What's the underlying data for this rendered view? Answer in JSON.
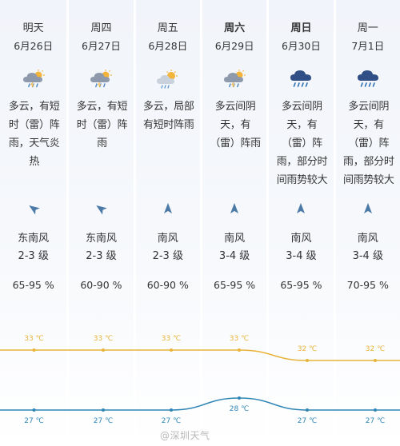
{
  "days": [
    {
      "day": "明天",
      "bold": false,
      "date": "6月26日",
      "icon": "cloud-thunder-sun-icon",
      "desc": [
        "多云，有短",
        "时（雷）阵",
        "雨，天气炎",
        "热"
      ],
      "wind_dir": "东南风",
      "wind_level": "2-3 级",
      "humidity": "65-95 %",
      "high": "33 ℃",
      "low": "27 ℃"
    },
    {
      "day": "周四",
      "bold": false,
      "date": "6月27日",
      "icon": "cloud-thunder-sun-icon",
      "desc": [
        "多云，有短",
        "时（雷）阵",
        "雨"
      ],
      "wind_dir": "东南风",
      "wind_level": "2-3 级",
      "humidity": "60-90 %",
      "high": "33 ℃",
      "low": "27 ℃"
    },
    {
      "day": "周五",
      "bold": false,
      "date": "6月28日",
      "icon": "cloud-sun-rain-icon",
      "desc": [
        "多云，局部",
        "有短时阵雨"
      ],
      "wind_dir": "南风",
      "wind_level": "2-3 级",
      "humidity": "60-90 %",
      "high": "33 ℃",
      "low": "27 ℃"
    },
    {
      "day": "周六",
      "bold": true,
      "date": "6月29日",
      "icon": "cloud-thunder-sun-icon",
      "desc": [
        "多云间阴",
        "天，有",
        "（雷）阵雨"
      ],
      "wind_dir": "南风",
      "wind_level": "3-4 级",
      "humidity": "65-95 %",
      "high": "33 ℃",
      "low": "28 ℃"
    },
    {
      "day": "周日",
      "bold": true,
      "date": "6月30日",
      "icon": "dark-cloud-rain-icon",
      "desc": [
        "多云间阴",
        "天，有",
        "（雷）阵",
        "雨，部分时",
        "间雨势较大"
      ],
      "wind_dir": "南风",
      "wind_level": "3-4 级",
      "humidity": "65-95 %",
      "high": "32 ℃",
      "low": "27 ℃"
    },
    {
      "day": "周一",
      "bold": false,
      "date": "7月1日",
      "icon": "dark-cloud-rain-icon",
      "desc": [
        "多云间阴",
        "天，有",
        "（雷）阵",
        "雨，部分时",
        "间雨势较大"
      ],
      "wind_dir": "南风",
      "wind_level": "3-4 级",
      "humidity": "70-95 %",
      "high": "32 ℃",
      "low": "27 ℃"
    }
  ],
  "chart_data": {
    "type": "line",
    "categories": [
      "6月26日",
      "6月27日",
      "6月28日",
      "6月29日",
      "6月30日",
      "7月1日"
    ],
    "series": [
      {
        "values": [
          33,
          33,
          33,
          33,
          32,
          32
        ],
        "color": "#e8b339"
      },
      {
        "values": [
          27,
          27,
          27,
          28,
          27,
          27
        ],
        "color": "#2e86b6"
      }
    ]
  },
  "watermark": "@深圳天气"
}
